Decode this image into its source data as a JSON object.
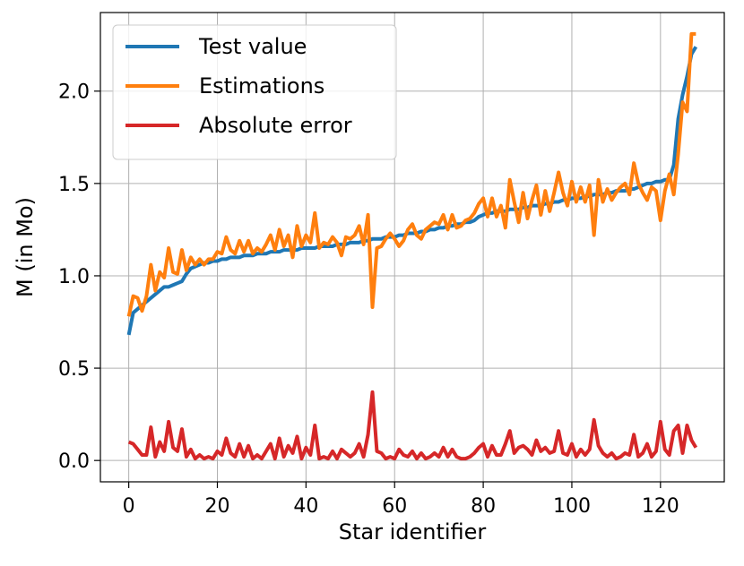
{
  "chart_data": {
    "type": "line",
    "x_label": "Star identifier",
    "y_label": "M (in Mo)",
    "x": [
      0,
      1,
      2,
      3,
      4,
      5,
      6,
      7,
      8,
      9,
      10,
      11,
      12,
      13,
      14,
      15,
      16,
      17,
      18,
      19,
      20,
      21,
      22,
      23,
      24,
      25,
      26,
      27,
      28,
      29,
      30,
      31,
      32,
      33,
      34,
      35,
      36,
      37,
      38,
      39,
      40,
      41,
      42,
      43,
      44,
      45,
      46,
      47,
      48,
      49,
      50,
      51,
      52,
      53,
      54,
      55,
      56,
      57,
      58,
      59,
      60,
      61,
      62,
      63,
      64,
      65,
      66,
      67,
      68,
      69,
      70,
      71,
      72,
      73,
      74,
      75,
      76,
      77,
      78,
      79,
      80,
      81,
      82,
      83,
      84,
      85,
      86,
      87,
      88,
      89,
      90,
      91,
      92,
      93,
      94,
      95,
      96,
      97,
      98,
      99,
      100,
      101,
      102,
      103,
      104,
      105,
      106,
      107,
      108,
      109,
      110,
      111,
      112,
      113,
      114,
      115,
      116,
      117,
      118,
      119,
      120,
      121,
      122,
      123,
      124,
      125,
      126,
      127,
      128
    ],
    "series": [
      {
        "name": "Test value",
        "color": "#1f77b4",
        "values": [
          0.68,
          0.8,
          0.82,
          0.84,
          0.86,
          0.88,
          0.9,
          0.92,
          0.94,
          0.94,
          0.95,
          0.96,
          0.97,
          1.01,
          1.04,
          1.05,
          1.06,
          1.07,
          1.07,
          1.08,
          1.08,
          1.09,
          1.09,
          1.1,
          1.1,
          1.1,
          1.11,
          1.11,
          1.11,
          1.12,
          1.12,
          1.12,
          1.13,
          1.13,
          1.13,
          1.14,
          1.14,
          1.14,
          1.14,
          1.15,
          1.15,
          1.15,
          1.15,
          1.16,
          1.16,
          1.16,
          1.16,
          1.17,
          1.17,
          1.17,
          1.18,
          1.18,
          1.18,
          1.19,
          1.19,
          1.2,
          1.2,
          1.2,
          1.21,
          1.21,
          1.21,
          1.22,
          1.22,
          1.23,
          1.23,
          1.23,
          1.24,
          1.24,
          1.25,
          1.25,
          1.26,
          1.26,
          1.27,
          1.27,
          1.28,
          1.28,
          1.29,
          1.29,
          1.3,
          1.32,
          1.33,
          1.34,
          1.34,
          1.35,
          1.35,
          1.35,
          1.36,
          1.36,
          1.36,
          1.37,
          1.37,
          1.38,
          1.38,
          1.38,
          1.39,
          1.39,
          1.4,
          1.4,
          1.41,
          1.41,
          1.42,
          1.42,
          1.42,
          1.43,
          1.43,
          1.44,
          1.44,
          1.44,
          1.45,
          1.45,
          1.46,
          1.46,
          1.46,
          1.47,
          1.47,
          1.48,
          1.49,
          1.5,
          1.5,
          1.51,
          1.51,
          1.52,
          1.52,
          1.6,
          1.85,
          1.98,
          2.08,
          2.2,
          2.24
        ]
      },
      {
        "name": "Estimations",
        "color": "#ff7f0e",
        "values": [
          0.78,
          0.89,
          0.88,
          0.81,
          0.89,
          1.06,
          0.92,
          1.02,
          0.99,
          1.15,
          1.02,
          1.01,
          1.14,
          1.03,
          1.1,
          1.06,
          1.09,
          1.06,
          1.09,
          1.09,
          1.13,
          1.12,
          1.21,
          1.14,
          1.12,
          1.19,
          1.13,
          1.19,
          1.12,
          1.15,
          1.13,
          1.17,
          1.22,
          1.14,
          1.25,
          1.16,
          1.22,
          1.1,
          1.27,
          1.16,
          1.22,
          1.18,
          1.34,
          1.15,
          1.18,
          1.17,
          1.21,
          1.18,
          1.11,
          1.21,
          1.2,
          1.22,
          1.27,
          1.17,
          1.33,
          0.83,
          1.15,
          1.16,
          1.2,
          1.23,
          1.2,
          1.16,
          1.19,
          1.25,
          1.28,
          1.22,
          1.2,
          1.25,
          1.27,
          1.29,
          1.28,
          1.33,
          1.25,
          1.33,
          1.26,
          1.27,
          1.3,
          1.31,
          1.34,
          1.39,
          1.42,
          1.32,
          1.42,
          1.32,
          1.38,
          1.26,
          1.52,
          1.4,
          1.29,
          1.45,
          1.31,
          1.41,
          1.49,
          1.33,
          1.46,
          1.35,
          1.45,
          1.56,
          1.45,
          1.38,
          1.51,
          1.4,
          1.48,
          1.4,
          1.49,
          1.22,
          1.52,
          1.4,
          1.47,
          1.41,
          1.45,
          1.48,
          1.5,
          1.44,
          1.61,
          1.5,
          1.45,
          1.41,
          1.48,
          1.46,
          1.3,
          1.46,
          1.55,
          1.44,
          1.66,
          1.94,
          1.89,
          2.31,
          2.31
        ]
      },
      {
        "name": "Absolute error",
        "color": "#d62728",
        "values": [
          0.1,
          0.09,
          0.06,
          0.03,
          0.03,
          0.18,
          0.02,
          0.1,
          0.05,
          0.21,
          0.07,
          0.05,
          0.17,
          0.02,
          0.06,
          0.01,
          0.03,
          0.01,
          0.02,
          0.01,
          0.05,
          0.03,
          0.12,
          0.04,
          0.02,
          0.09,
          0.02,
          0.08,
          0.01,
          0.03,
          0.01,
          0.05,
          0.09,
          0.01,
          0.12,
          0.02,
          0.08,
          0.04,
          0.13,
          0.01,
          0.07,
          0.03,
          0.19,
          0.01,
          0.02,
          0.01,
          0.05,
          0.01,
          0.06,
          0.04,
          0.02,
          0.04,
          0.09,
          0.02,
          0.14,
          0.37,
          0.05,
          0.04,
          0.01,
          0.02,
          0.01,
          0.06,
          0.03,
          0.02,
          0.05,
          0.01,
          0.04,
          0.01,
          0.02,
          0.04,
          0.02,
          0.07,
          0.02,
          0.06,
          0.02,
          0.01,
          0.01,
          0.02,
          0.04,
          0.07,
          0.09,
          0.02,
          0.08,
          0.03,
          0.03,
          0.09,
          0.16,
          0.04,
          0.07,
          0.08,
          0.06,
          0.03,
          0.11,
          0.05,
          0.07,
          0.04,
          0.05,
          0.16,
          0.04,
          0.03,
          0.09,
          0.02,
          0.06,
          0.03,
          0.06,
          0.22,
          0.08,
          0.04,
          0.02,
          0.04,
          0.01,
          0.02,
          0.04,
          0.03,
          0.14,
          0.02,
          0.04,
          0.09,
          0.02,
          0.05,
          0.21,
          0.06,
          0.03,
          0.16,
          0.19,
          0.04,
          0.19,
          0.11,
          0.07
        ]
      }
    ],
    "xlim": [
      -6.4,
      134.4
    ],
    "ylim": [
      -0.1155,
      2.4255
    ],
    "xticks": [
      0,
      20,
      40,
      60,
      80,
      100,
      120
    ],
    "yticks": [
      {
        "value": 0,
        "label": "0.0"
      },
      {
        "value": 0.5,
        "label": "0.5"
      },
      {
        "value": 1,
        "label": "1.0"
      },
      {
        "value": 1.5,
        "label": "1.5"
      },
      {
        "value": 2,
        "label": "2.0"
      }
    ],
    "grid": true,
    "legend": "upper left"
  }
}
